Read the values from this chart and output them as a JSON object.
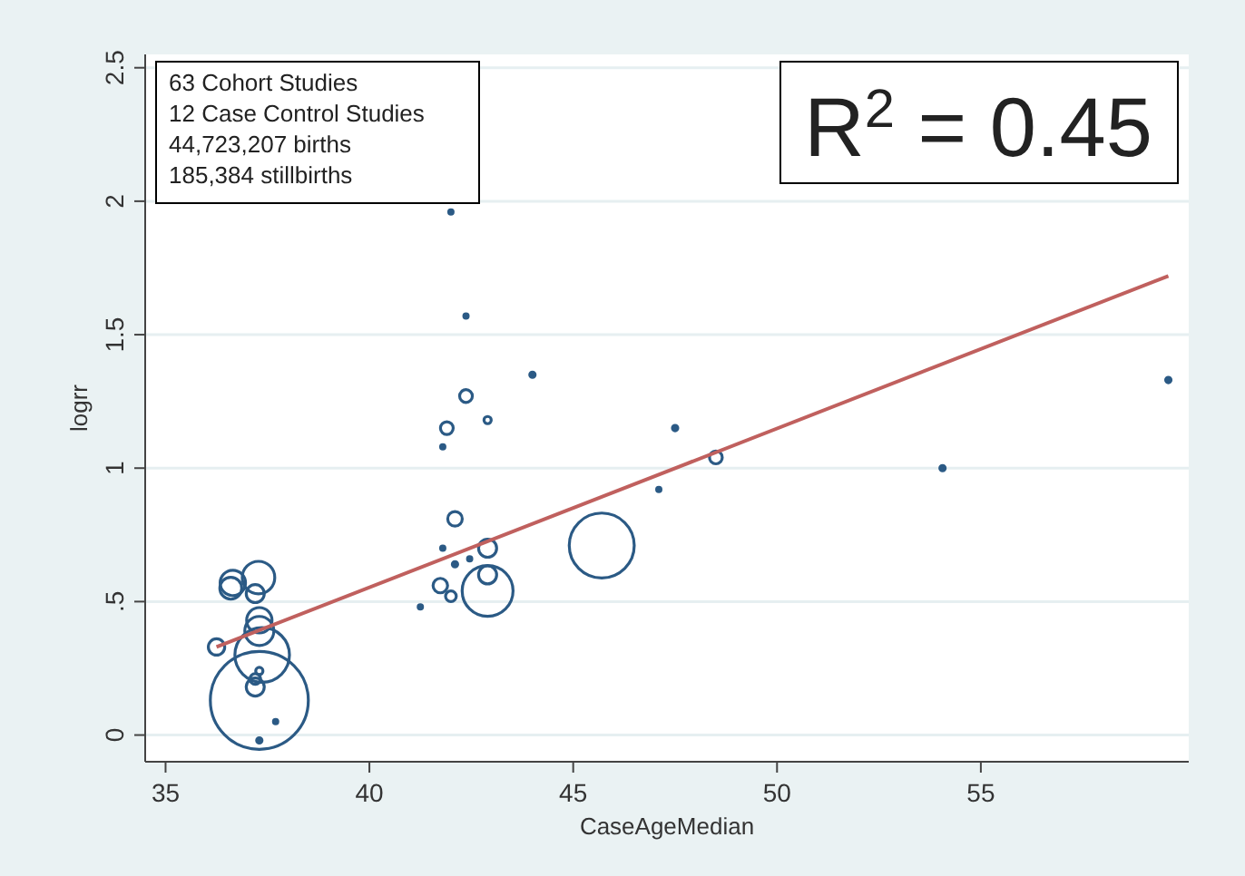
{
  "chart_data": {
    "type": "bubble",
    "xlabel": "CaseAgeMedian",
    "ylabel": "logrr",
    "xlim": [
      34.5,
      60.1
    ],
    "xticks": [
      35,
      40,
      45,
      50,
      55
    ],
    "ylim": [
      -0.1,
      2.55
    ],
    "yticks": [
      0,
      {
        "value": 0.5,
        "label": ".5"
      },
      1,
      1.5,
      2,
      2.5
    ],
    "grid": "y",
    "marker": "circle",
    "annotations": [
      "63 Cohort Studies",
      "12 Case Control Studies",
      "44,723,207 births",
      "185,384 stillbirths",
      "R$^{2}$ = 0.45"
    ],
    "series": [
      {
        "color": "#2b5a85",
        "x": [
          37.3,
          36.65,
          36.6,
          37.28,
          37.2,
          37.3,
          37.3,
          36.25,
          37.37,
          37.2,
          37.2,
          37.3,
          37.3,
          37.7,
          42.0,
          42.37,
          44.0,
          42.37,
          41.9,
          42.9,
          41.8,
          42.1,
          41.8,
          42.9,
          42.1,
          42.46,
          42.9,
          41.74,
          42.0,
          42.9,
          41.25,
          45.7,
          47.5,
          47.1,
          48.5,
          54.06,
          59.6
        ],
        "values": [
          0.13,
          0.57,
          0.55,
          0.59,
          0.53,
          0.43,
          0.39,
          0.33,
          0.3,
          0.18,
          0.21,
          0.24,
          -0.02,
          0.05,
          1.96,
          1.57,
          1.35,
          1.27,
          1.15,
          1.18,
          1.08,
          0.81,
          0.7,
          0.7,
          0.64,
          0.66,
          0.6,
          0.56,
          0.52,
          0.54,
          0.48,
          0.71,
          1.15,
          0.92,
          1.04,
          1.0,
          1.33
        ],
        "sizes": [
          1,
          0.067,
          0.05,
          0.11,
          0.034,
          0.067,
          0.088,
          0.028,
          0.31,
          0.034,
          0.012,
          0.0055,
          0.003,
          0.0014,
          0.0014,
          0.0014,
          0.003,
          0.017,
          0.017,
          0.0055,
          0.0014,
          0.022,
          0.0014,
          0.034,
          0.003,
          0.0014,
          0.034,
          0.022,
          0.012,
          0.27,
          0.0014,
          0.44,
          0.003,
          0.0014,
          0.017,
          0.003,
          0.003
        ]
      },
      {
        "type": "line",
        "color": "#c0605e",
        "x": [
          36.25,
          59.6
        ],
        "values": [
          0.33,
          1.72
        ],
        "marker": "none",
        "line_style": "solid"
      }
    ]
  }
}
